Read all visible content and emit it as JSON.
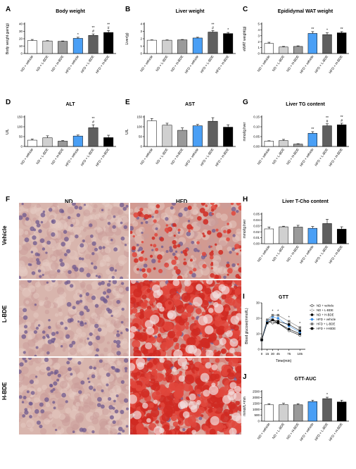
{
  "groups": [
    "ND + vehicle",
    "ND + L-BDE",
    "ND + H-BDE",
    "HFD + vehicle",
    "HFD + L-BDE",
    "HFD + H-BDE"
  ],
  "bar_colors": [
    "#ffffff",
    "#d0d0d0",
    "#9a9a9a",
    "#4a9ff5",
    "#5f5f5f",
    "#000000"
  ],
  "panel_letters": {
    "a": "A",
    "b": "B",
    "c": "C",
    "d": "D",
    "e": "E",
    "f": "F",
    "g": "G",
    "h": "H",
    "i": "I",
    "j": "J"
  },
  "micro": {
    "col_nd": "ND",
    "col_hfd": "HFD",
    "row_vehicle": "Vehicle",
    "row_lbde": "L-BDE",
    "row_hbde": "H-BDE"
  },
  "chart_data": [
    {
      "id": "A",
      "type": "bar",
      "title": "Body weight",
      "ylabel": "Body weight gain(g)",
      "ylim": [
        0,
        40
      ],
      "yticks": [
        "0",
        "10",
        "20",
        "30",
        "40"
      ],
      "values": [
        17.5,
        17,
        16.5,
        20.5,
        24.5,
        28.5
      ],
      "errors": [
        1.5,
        0.5,
        0.5,
        1.5,
        2,
        2.5
      ],
      "annotations": [
        "",
        "",
        "",
        "*",
        "**\n#",
        "**\n#"
      ]
    },
    {
      "id": "B",
      "type": "bar",
      "title": "Liver weight",
      "ylabel": "Liver(g)",
      "ylim": [
        0,
        4
      ],
      "yticks": [
        "0",
        "1",
        "2",
        "3",
        "4"
      ],
      "values": [
        1.8,
        1.8,
        1.85,
        2.1,
        2.9,
        2.7
      ],
      "errors": [
        0.05,
        0.05,
        0.05,
        0.1,
        0.2,
        0.15
      ],
      "annotations": [
        "",
        "",
        "",
        "",
        "**\n#",
        "*"
      ]
    },
    {
      "id": "C",
      "type": "bar",
      "title": "Epididymal WAT weight",
      "ylabel": "eWAT weight(g)",
      "ylim": [
        0,
        5
      ],
      "yticks": [
        "0",
        "1",
        "2",
        "3",
        "4",
        "5"
      ],
      "values": [
        1.7,
        1.1,
        1.2,
        3.4,
        3.2,
        3.5
      ],
      "errors": [
        0.2,
        0.1,
        0.1,
        0.3,
        0.3,
        0.2
      ],
      "annotations": [
        "",
        "",
        "",
        "**",
        "*",
        "**"
      ]
    },
    {
      "id": "D",
      "type": "bar",
      "title": "ALT",
      "ylabel": "U/L",
      "ylim": [
        0,
        150
      ],
      "yticks": [
        "0",
        "50",
        "100",
        "150"
      ],
      "values": [
        32,
        44,
        27,
        53,
        95,
        45
      ],
      "errors": [
        6,
        10,
        3,
        5,
        15,
        12
      ],
      "annotations": [
        "",
        "",
        "",
        "",
        "**\n#",
        ""
      ]
    },
    {
      "id": "E",
      "type": "bar",
      "title": "AST",
      "ylabel": "U/L",
      "ylim": [
        0,
        150
      ],
      "yticks": [
        "0",
        "50",
        "100",
        "150"
      ],
      "values": [
        130,
        108,
        82,
        105,
        128,
        98
      ],
      "errors": [
        12,
        10,
        12,
        7,
        18,
        12
      ],
      "annotations": [
        "",
        "",
        "",
        "",
        "",
        ""
      ]
    },
    {
      "id": "G",
      "type": "bar",
      "title": "Liver TG content",
      "ylabel": "mmol/g liver",
      "ylim": [
        0,
        0.15
      ],
      "yticks": [
        "0.00",
        "0.05",
        "0.10",
        "0.15"
      ],
      "values": [
        0.027,
        0.03,
        0.012,
        0.067,
        0.105,
        0.11
      ],
      "errors": [
        0.002,
        0.006,
        0.002,
        0.008,
        0.01,
        0.008
      ],
      "annotations": [
        "",
        "",
        "",
        "**",
        "**\n#",
        "**\n#"
      ]
    },
    {
      "id": "H",
      "type": "bar",
      "title": "Liver T-Cho content",
      "ylabel": "mmol/g liver",
      "ylim": [
        0,
        0.05
      ],
      "yticks": [
        "0.00",
        "0.01",
        "0.02",
        "0.03",
        "0.04",
        "0.05"
      ],
      "values": [
        0.025,
        0.0285,
        0.028,
        0.026,
        0.034,
        0.0245
      ],
      "errors": [
        0.003,
        0.001,
        0.003,
        0.003,
        0.007,
        0.004
      ],
      "annotations": [
        "",
        "",
        "",
        "",
        "",
        ""
      ]
    },
    {
      "id": "I",
      "type": "line",
      "title": "GTT",
      "xlabel": "Time(min)",
      "ylabel": "Blood glucose(mmol/L)",
      "xlim": [
        0,
        120
      ],
      "ylim": [
        0,
        30
      ],
      "x": [
        0,
        15,
        30,
        45,
        75,
        105
      ],
      "xticks": [
        "0",
        "15",
        "30",
        "45",
        "75",
        "105"
      ],
      "yticks": [
        "0",
        "10",
        "20",
        "30"
      ],
      "series": [
        {
          "name": "ND + vehicle",
          "values": [
            6,
            18,
            17,
            17,
            12,
            9
          ]
        },
        {
          "name": "ND + L-BDE",
          "values": [
            6,
            18,
            18,
            17,
            13,
            10
          ]
        },
        {
          "name": "ND + H-BDE",
          "values": [
            6,
            19,
            19,
            17,
            13,
            10
          ]
        },
        {
          "name": "HFD + vehicle",
          "values": [
            6,
            18,
            21,
            20,
            15,
            11
          ]
        },
        {
          "name": "HFD + L-BDE",
          "values": [
            7,
            19,
            22,
            22,
            18,
            14
          ]
        },
        {
          "name": "HFD + H-BDE",
          "values": [
            6,
            17,
            19,
            18,
            16,
            12
          ]
        }
      ],
      "annotations": [
        "*",
        "*",
        "*",
        "*"
      ]
    },
    {
      "id": "J",
      "type": "bar",
      "title": "GTT-AUC",
      "ylabel": "mmol/L×min",
      "ylim": [
        0,
        2500
      ],
      "yticks": [
        "0",
        "500",
        "1000",
        "1500",
        "2000",
        "2500"
      ],
      "values": [
        1380,
        1390,
        1380,
        1650,
        1900,
        1620
      ],
      "errors": [
        80,
        120,
        90,
        120,
        120,
        150
      ],
      "annotations": [
        "",
        "",
        "",
        "",
        "*",
        ""
      ]
    }
  ]
}
